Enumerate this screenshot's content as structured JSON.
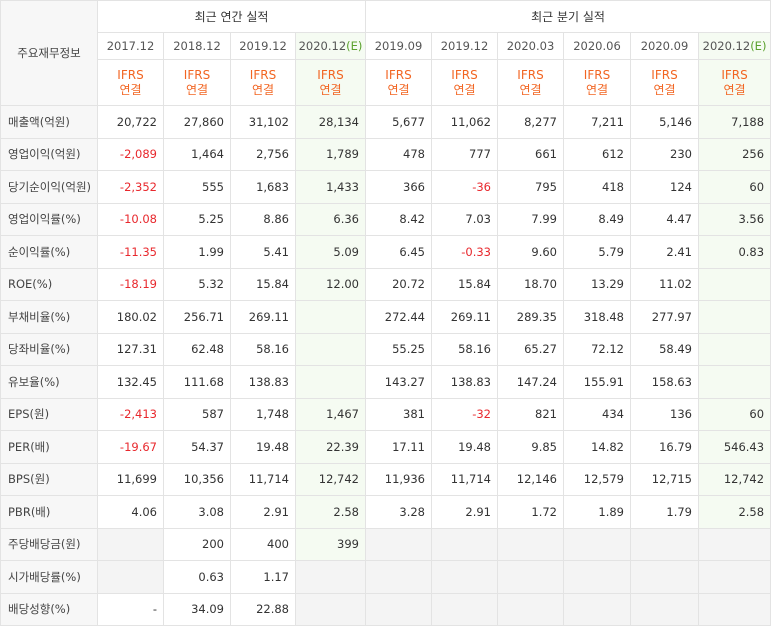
{
  "header": {
    "label_col": "주요재무정보",
    "annual_title": "최근 연간 실적",
    "quarter_title": "최근 분기 실적",
    "estimate_mark": "(E)",
    "ifrs_top": "IFRS",
    "ifrs_bottom": "연결"
  },
  "periods": [
    {
      "label": "2017.12",
      "est": false
    },
    {
      "label": "2018.12",
      "est": false
    },
    {
      "label": "2019.12",
      "est": false
    },
    {
      "label": "2020.12",
      "est": true
    },
    {
      "label": "2019.09",
      "est": false
    },
    {
      "label": "2019.12",
      "est": false
    },
    {
      "label": "2020.03",
      "est": false
    },
    {
      "label": "2020.06",
      "est": false
    },
    {
      "label": "2020.09",
      "est": false
    },
    {
      "label": "2020.12",
      "est": true
    }
  ],
  "rows": [
    {
      "label": "매출액(억원)",
      "values": [
        "20,722",
        "27,860",
        "31,102",
        "28,134",
        "5,677",
        "11,062",
        "8,277",
        "7,211",
        "5,146",
        "7,188"
      ]
    },
    {
      "label": "영업이익(억원)",
      "values": [
        "-2,089",
        "1,464",
        "2,756",
        "1,789",
        "478",
        "777",
        "661",
        "612",
        "230",
        "256"
      ]
    },
    {
      "label": "당기순이익(억원)",
      "values": [
        "-2,352",
        "555",
        "1,683",
        "1,433",
        "366",
        "-36",
        "795",
        "418",
        "124",
        "60"
      ]
    },
    {
      "label": "영업이익률(%)",
      "values": [
        "-10.08",
        "5.25",
        "8.86",
        "6.36",
        "8.42",
        "7.03",
        "7.99",
        "8.49",
        "4.47",
        "3.56"
      ]
    },
    {
      "label": "순이익률(%)",
      "values": [
        "-11.35",
        "1.99",
        "5.41",
        "5.09",
        "6.45",
        "-0.33",
        "9.60",
        "5.79",
        "2.41",
        "0.83"
      ]
    },
    {
      "label": "ROE(%)",
      "values": [
        "-18.19",
        "5.32",
        "15.84",
        "12.00",
        "20.72",
        "15.84",
        "18.70",
        "13.29",
        "11.02",
        ""
      ]
    },
    {
      "label": "부채비율(%)",
      "values": [
        "180.02",
        "256.71",
        "269.11",
        "",
        "272.44",
        "269.11",
        "289.35",
        "318.48",
        "277.97",
        ""
      ]
    },
    {
      "label": "당좌비율(%)",
      "values": [
        "127.31",
        "62.48",
        "58.16",
        "",
        "55.25",
        "58.16",
        "65.27",
        "72.12",
        "58.49",
        ""
      ]
    },
    {
      "label": "유보율(%)",
      "values": [
        "132.45",
        "111.68",
        "138.83",
        "",
        "143.27",
        "138.83",
        "147.24",
        "155.91",
        "158.63",
        ""
      ]
    },
    {
      "label": "EPS(원)",
      "values": [
        "-2,413",
        "587",
        "1,748",
        "1,467",
        "381",
        "-32",
        "821",
        "434",
        "136",
        "60"
      ]
    },
    {
      "label": "PER(배)",
      "values": [
        "-19.67",
        "54.37",
        "19.48",
        "22.39",
        "17.11",
        "19.48",
        "9.85",
        "14.82",
        "16.79",
        "546.43"
      ]
    },
    {
      "label": "BPS(원)",
      "values": [
        "11,699",
        "10,356",
        "11,714",
        "12,742",
        "11,936",
        "11,714",
        "12,146",
        "12,579",
        "12,715",
        "12,742"
      ]
    },
    {
      "label": "PBR(배)",
      "values": [
        "4.06",
        "3.08",
        "2.91",
        "2.58",
        "3.28",
        "2.91",
        "1.72",
        "1.89",
        "1.79",
        "2.58"
      ]
    },
    {
      "label": "주당배당금(원)",
      "values": [
        "",
        "200",
        "400",
        "399",
        "",
        "",
        "",
        "",
        "",
        ""
      ]
    },
    {
      "label": "시가배당률(%)",
      "values": [
        "",
        "0.63",
        "1.17",
        "",
        "",
        "",
        "",
        "",
        "",
        ""
      ]
    },
    {
      "label": "배당성향(%)",
      "values": [
        "-",
        "34.09",
        "22.88",
        "",
        "",
        "",
        "",
        "",
        "",
        ""
      ]
    }
  ],
  "colors": {
    "negative": "#e8282d",
    "ifrs": "#f26522",
    "estimate_mark": "#5aa12d",
    "estimate_bg": "#f5fbf2",
    "label_bg": "#f7f7f7",
    "empty_bg": "#f4f4f4"
  }
}
